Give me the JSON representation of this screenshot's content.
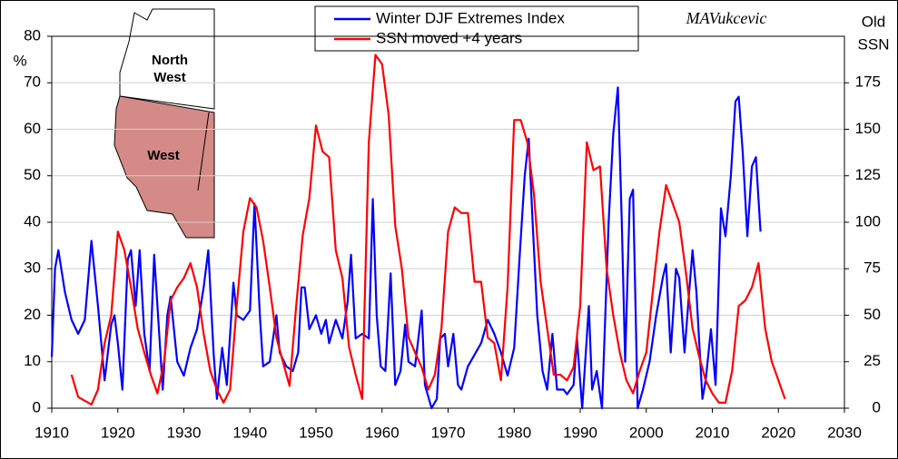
{
  "chart_data": {
    "type": "line",
    "annotation": "MAVukcevic",
    "ylabel": "%",
    "y2label": [
      "Old",
      "SSN"
    ],
    "map_labels": [
      "North\nWest",
      "West"
    ],
    "xlim": [
      1910,
      2030
    ],
    "xticks": [
      1910,
      1920,
      1930,
      1940,
      1950,
      1960,
      1970,
      1980,
      1990,
      2000,
      2010,
      2020,
      2030
    ],
    "ylim": [
      0,
      80
    ],
    "yticks": [
      0,
      10,
      20,
      30,
      40,
      50,
      60,
      70,
      80
    ],
    "y2lim": [
      0,
      200
    ],
    "y2ticks": [
      0,
      25,
      50,
      75,
      100,
      125,
      150,
      175
    ],
    "grid": true,
    "legend": "top",
    "series": [
      {
        "name": "Winter DJF Extremes Index",
        "color": "#0000ff",
        "x": [
          1910,
          1910.5,
          1911,
          1912,
          1913,
          1914,
          1915,
          1916,
          1917,
          1918,
          1919,
          1919.5,
          1920,
          1920.7,
          1921.5,
          1922,
          1922.7,
          1923.3,
          1924,
          1924.8,
          1925.5,
          1926,
          1926.8,
          1927.5,
          1928,
          1929,
          1930,
          1931,
          1932,
          1933,
          1933.7,
          1934.5,
          1935,
          1935.8,
          1936.5,
          1937.5,
          1938,
          1939,
          1940,
          1940.7,
          1941.5,
          1942,
          1943,
          1944,
          1944.5,
          1945.5,
          1946.5,
          1947.3,
          1947.8,
          1948.3,
          1949,
          1950,
          1950.8,
          1951.5,
          1952,
          1953,
          1954,
          1954.8,
          1955.3,
          1956,
          1957,
          1958,
          1958.6,
          1959.2,
          1959.8,
          1960.5,
          1961.3,
          1962,
          1962.8,
          1963.5,
          1964,
          1965,
          1966,
          1966.5,
          1967.5,
          1968.3,
          1968.8,
          1969.5,
          1970,
          1970.8,
          1971.5,
          1972,
          1973,
          1975,
          1976,
          1977,
          1978,
          1979,
          1980,
          1980.8,
          1981.6,
          1982.2,
          1982.8,
          1983.5,
          1984.3,
          1985,
          1985.8,
          1986.5,
          1987.5,
          1988,
          1989,
          1989.5,
          1990.3,
          1991.3,
          1991.8,
          1992.5,
          1993.3,
          1994.3,
          1995,
          1995.7,
          1996.3,
          1996.8,
          1997.5,
          1998,
          1998.7,
          1999.5,
          2000.5,
          2001.5,
          2002.5,
          2003,
          2003.7,
          2004.5,
          2005,
          2005.8,
          2006.5,
          2007,
          2007.6,
          2008.5,
          2009,
          2009.8,
          2010.5,
          2011.3,
          2012,
          2012.8,
          2013.5,
          2014,
          2014.6,
          2015.3,
          2016,
          2016.6,
          2017.3
        ],
        "values": [
          11,
          30,
          34,
          25,
          19,
          16,
          19,
          36,
          22,
          6,
          18,
          20,
          14,
          4,
          32,
          34,
          22,
          34,
          16,
          8,
          33,
          22,
          4,
          20,
          24,
          10,
          7,
          13,
          17,
          26,
          34,
          12,
          2,
          13,
          5,
          27,
          20,
          19,
          21,
          44,
          20,
          9,
          10,
          20,
          12,
          9,
          8,
          12,
          26,
          26,
          17,
          20,
          16,
          19,
          14,
          19,
          15,
          23,
          33,
          15,
          16,
          15,
          45,
          20,
          9,
          8,
          29,
          5,
          8,
          18,
          10,
          9,
          21,
          5,
          0,
          2,
          15,
          16,
          9,
          16,
          5,
          4,
          9,
          14,
          19,
          16,
          12,
          7,
          13,
          32,
          50,
          58,
          40,
          20,
          8,
          4,
          16,
          4,
          4,
          3,
          5,
          15,
          0,
          22,
          4,
          8,
          0,
          40,
          59,
          69,
          40,
          10,
          45,
          47,
          0,
          4,
          10,
          20,
          28,
          31,
          12,
          30,
          28,
          12,
          25,
          34,
          25,
          2,
          6,
          17,
          5,
          43,
          37,
          50,
          66,
          67,
          55,
          37,
          52,
          54,
          38
        ]
      },
      {
        "name": "SSN moved +4 years",
        "color": "#ff0000",
        "axis": "y2",
        "x": [
          1913,
          1914,
          1915,
          1916,
          1917,
          1918,
          1919,
          1920,
          1921,
          1922,
          1923,
          1924,
          1925,
          1926,
          1927,
          1928,
          1929,
          1930,
          1931,
          1932,
          1933,
          1934,
          1935,
          1936,
          1937,
          1938,
          1939,
          1940,
          1941,
          1942,
          1943,
          1944,
          1945,
          1946,
          1947,
          1948,
          1949,
          1950,
          1951,
          1952,
          1953,
          1954,
          1955,
          1956,
          1957,
          1958,
          1959,
          1960,
          1961,
          1962,
          1963,
          1964,
          1965,
          1966,
          1967,
          1968,
          1969,
          1970,
          1971,
          1972,
          1973,
          1974,
          1975,
          1976,
          1977,
          1978,
          1979,
          1980,
          1981,
          1982,
          1983,
          1984,
          1985,
          1986,
          1987,
          1988,
          1989,
          1990,
          1991,
          1992,
          1993,
          1994,
          1995,
          1996,
          1997,
          1998,
          1999,
          2000,
          2001,
          2002,
          2003,
          2004,
          2005,
          2006,
          2007,
          2008,
          2009,
          2010,
          2011,
          2012,
          2013,
          2014,
          2015,
          2016,
          2017,
          2018,
          2019,
          2020,
          2021
        ],
        "values": [
          18,
          6,
          4,
          2,
          10,
          35,
          50,
          95,
          85,
          65,
          43,
          30,
          18,
          8,
          25,
          58,
          65,
          70,
          78,
          65,
          40,
          20,
          10,
          3,
          10,
          55,
          95,
          113,
          108,
          90,
          65,
          38,
          25,
          12,
          55,
          93,
          113,
          152,
          138,
          135,
          85,
          70,
          33,
          18,
          5,
          143,
          190,
          185,
          158,
          98,
          75,
          38,
          30,
          22,
          10,
          18,
          43,
          95,
          108,
          105,
          105,
          68,
          68,
          38,
          35,
          15,
          65,
          155,
          155,
          143,
          115,
          68,
          43,
          18,
          18,
          15,
          22,
          55,
          143,
          128,
          130,
          75,
          50,
          30,
          15,
          8,
          20,
          30,
          63,
          95,
          120,
          110,
          100,
          73,
          43,
          28,
          15,
          8,
          3,
          3,
          20,
          55,
          58,
          65,
          78,
          43,
          25,
          15,
          5
        ]
      }
    ]
  }
}
